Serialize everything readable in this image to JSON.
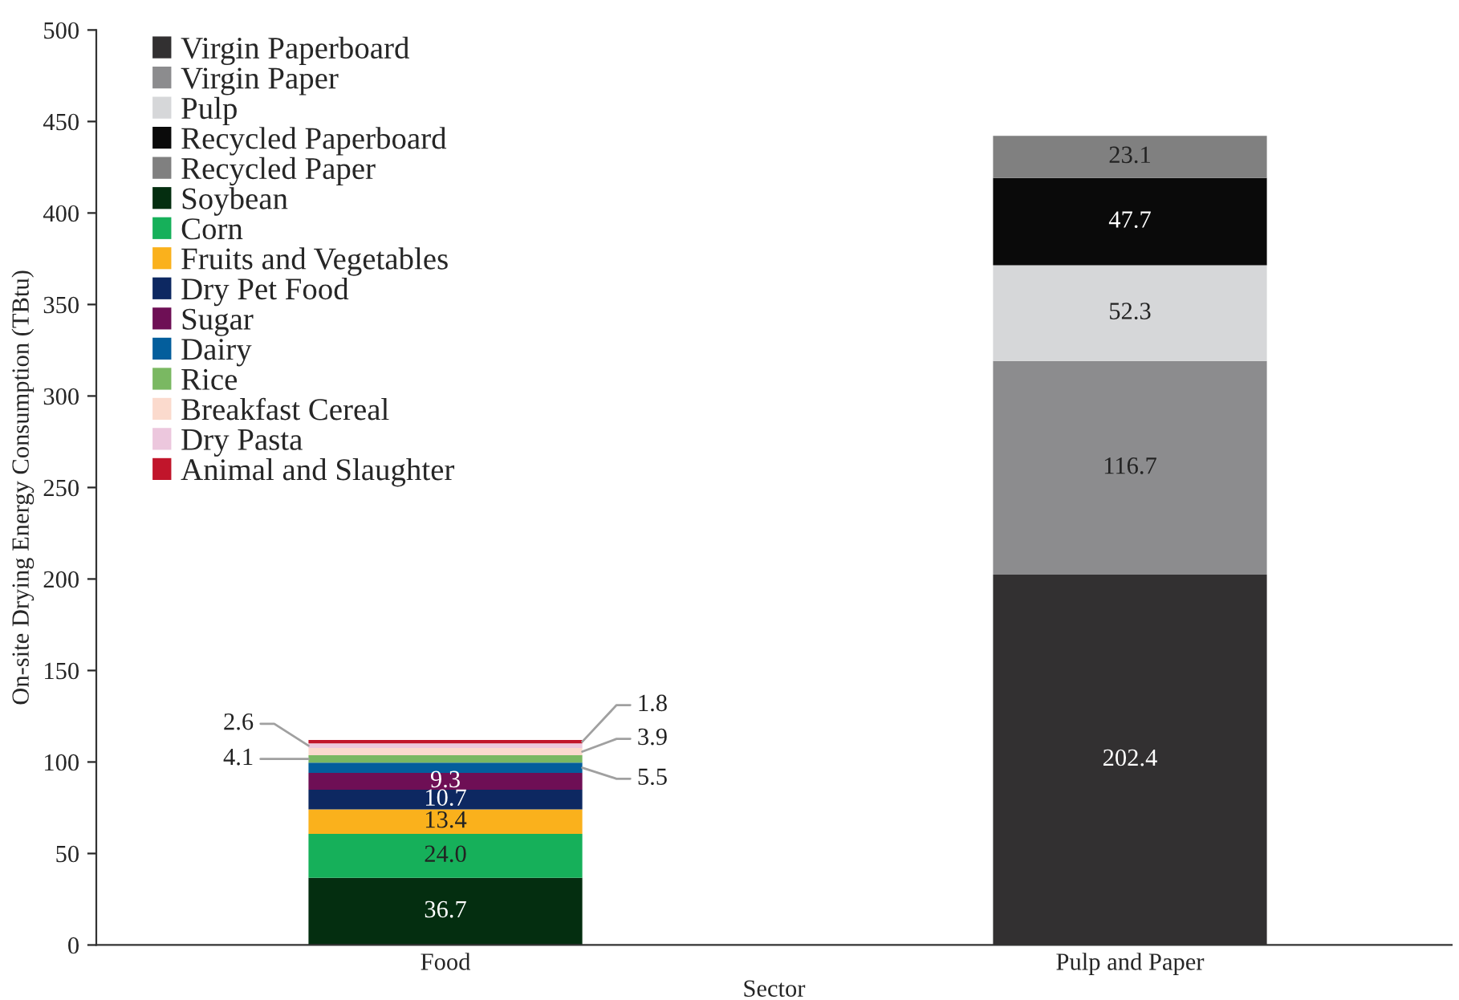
{
  "chart_data": {
    "type": "bar",
    "stacked": true,
    "xlabel": "Sector",
    "ylabel": "On-site Drying Energy Consumption (TBtu)",
    "categories": [
      "Food",
      "Pulp and Paper"
    ],
    "series": [
      {
        "name": "Virgin Paperboard",
        "color": "#323031",
        "values": [
          null,
          202.4
        ]
      },
      {
        "name": "Virgin Paper",
        "color": "#8c8c8e",
        "values": [
          null,
          116.7
        ]
      },
      {
        "name": "Pulp",
        "color": "#d6d7d9",
        "values": [
          null,
          52.3
        ]
      },
      {
        "name": "Recycled Paperboard",
        "color": "#0a0a0a",
        "values": [
          null,
          47.7
        ]
      },
      {
        "name": "Recycled Paper",
        "color": "#808080",
        "values": [
          null,
          23.1
        ]
      },
      {
        "name": "Soybean",
        "color": "#042e10",
        "values": [
          36.7,
          null
        ]
      },
      {
        "name": "Corn",
        "color": "#16b05a",
        "values": [
          24.0,
          null
        ],
        "value_labels": [
          "24.0",
          null
        ]
      },
      {
        "name": "Fruits and Vegetables",
        "color": "#fab11c",
        "values": [
          13.4,
          null
        ]
      },
      {
        "name": "Dry Pet Food",
        "color": "#0d2861",
        "values": [
          10.7,
          null
        ]
      },
      {
        "name": "Sugar",
        "color": "#6e0f55",
        "values": [
          9.3,
          null
        ]
      },
      {
        "name": "Dairy",
        "color": "#035e9c",
        "values": [
          5.5,
          null
        ]
      },
      {
        "name": "Rice",
        "color": "#7ab862",
        "values": [
          4.1,
          null
        ]
      },
      {
        "name": "Breakfast Cereal",
        "color": "#fbdacd",
        "values": [
          3.9,
          null
        ]
      },
      {
        "name": "Dry Pasta",
        "color": "#ecc7dd",
        "values": [
          2.6,
          null
        ]
      },
      {
        "name": "Animal and Slaughter",
        "color": "#c1152b",
        "values": [
          1.8,
          null
        ]
      }
    ],
    "ylim": [
      0,
      500
    ],
    "yticks": [
      0,
      50,
      100,
      150,
      200,
      250,
      300,
      350,
      400,
      450,
      500
    ],
    "data_labels": true,
    "legend": "top left",
    "grid": false
  }
}
